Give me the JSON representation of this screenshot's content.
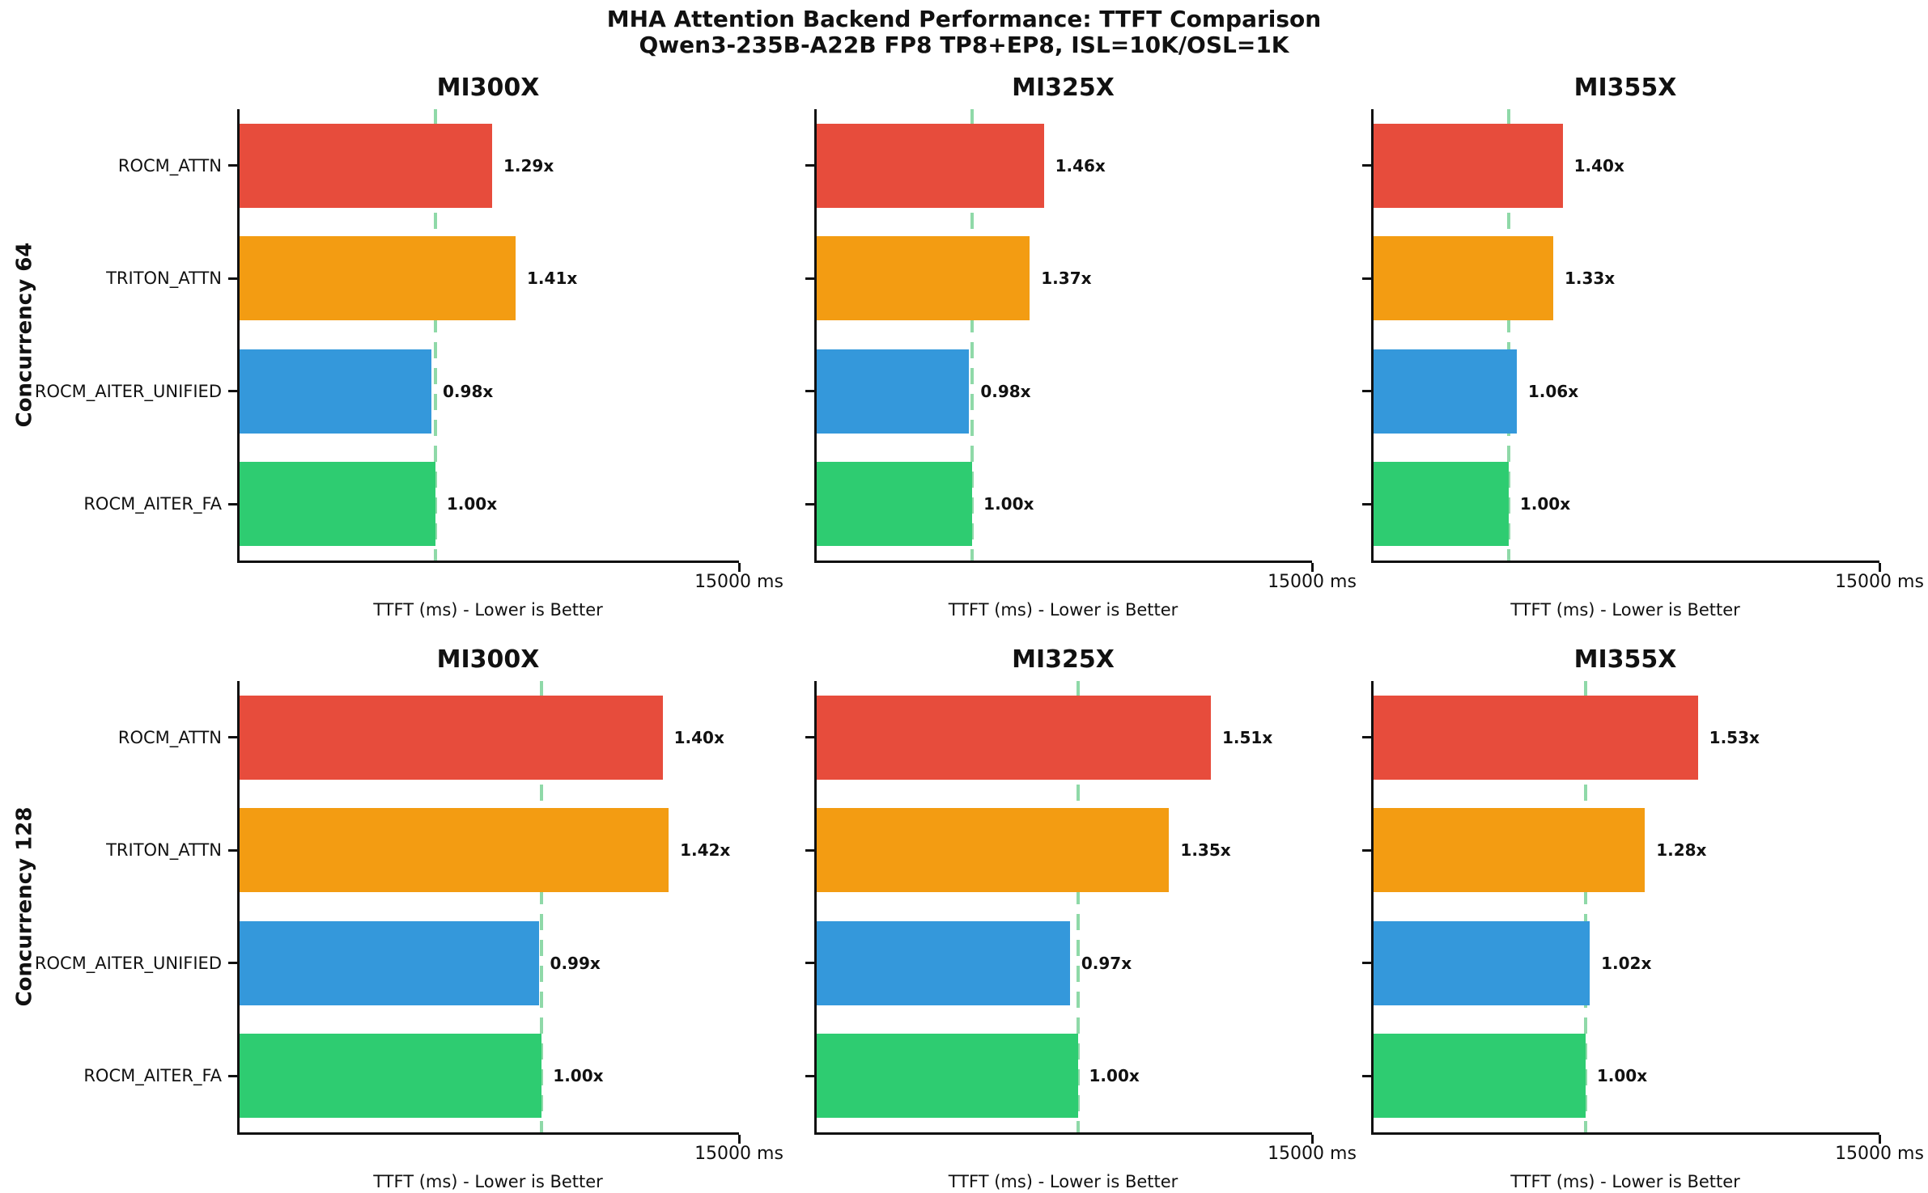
{
  "chart_data": {
    "type": "bar",
    "orientation": "horizontal",
    "suptitle_line1": "MHA Attention Backend Performance: TTFT Comparison",
    "suptitle_line2": "Qwen3-235B-A22B FP8 TP8+EP8, ISL=10K/OSL=1K",
    "categories": [
      "ROCM_ATTN",
      "TRITON_ATTN",
      "ROCM_AITER_UNIFIED",
      "ROCM_AITER_FA"
    ],
    "bar_colors": [
      "#e74c3c",
      "#f39c12",
      "#3498db",
      "#2ecc71"
    ],
    "baseline_line_color": "#8fd9a8",
    "x_axis": {
      "label": "TTFT (ms) - Lower is Better",
      "max_ms": 15000,
      "tick_label": "15000 ms"
    },
    "grid": [
      {
        "row_label": "Concurrency 64",
        "subplots": [
          {
            "title": "MI300X",
            "labels": [
              "1.29x",
              "1.41x",
              "0.98x",
              "1.00x"
            ],
            "multipliers": [
              1.29,
              1.41,
              0.98,
              1.0
            ],
            "baseline_frac_of_axis": 0.392,
            "baseline_ttft_ms_est": 5880
          },
          {
            "title": "MI325X",
            "labels": [
              "1.46x",
              "1.37x",
              "0.98x",
              "1.00x"
            ],
            "multipliers": [
              1.46,
              1.37,
              0.98,
              1.0
            ],
            "baseline_frac_of_axis": 0.314,
            "baseline_ttft_ms_est": 4710
          },
          {
            "title": "MI355X",
            "labels": [
              "1.40x",
              "1.33x",
              "1.06x",
              "1.00x"
            ],
            "multipliers": [
              1.4,
              1.33,
              1.06,
              1.0
            ],
            "baseline_frac_of_axis": 0.267,
            "baseline_ttft_ms_est": 4005
          }
        ]
      },
      {
        "row_label": "Concurrency 128",
        "subplots": [
          {
            "title": "MI300X",
            "labels": [
              "1.40x",
              "1.42x",
              "0.99x",
              "1.00x"
            ],
            "multipliers": [
              1.4,
              1.42,
              0.99,
              1.0
            ],
            "baseline_frac_of_axis": 0.605,
            "baseline_ttft_ms_est": 9075
          },
          {
            "title": "MI325X",
            "labels": [
              "1.51x",
              "1.35x",
              "0.97x",
              "1.00x"
            ],
            "multipliers": [
              1.51,
              1.35,
              0.97,
              1.0
            ],
            "baseline_frac_of_axis": 0.527,
            "baseline_ttft_ms_est": 7905
          },
          {
            "title": "MI355X",
            "labels": [
              "1.53x",
              "1.28x",
              "1.02x",
              "1.00x"
            ],
            "multipliers": [
              1.53,
              1.28,
              1.02,
              1.0
            ],
            "baseline_frac_of_axis": 0.419,
            "baseline_ttft_ms_est": 6285
          }
        ]
      }
    ]
  }
}
